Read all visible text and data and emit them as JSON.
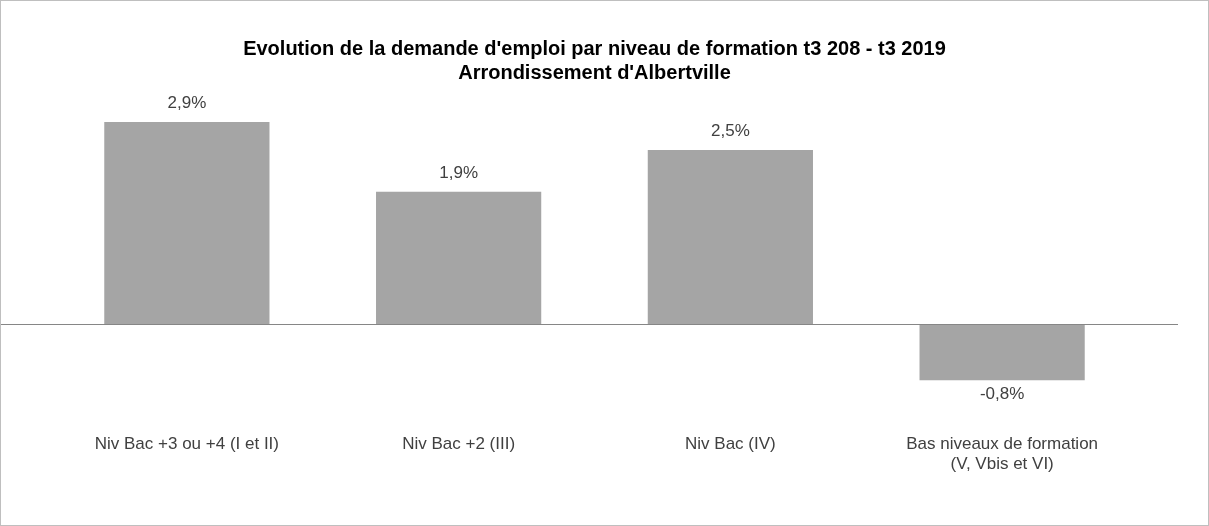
{
  "chart_data": {
    "type": "bar",
    "title": "Evolution de la demande d'emploi par niveau de formation t3 208 - t3 2019\nArrondissement d'Albertville",
    "categories": [
      "Niv Bac +3 ou +4 (I et II)",
      "Niv Bac +2 (III)",
      "Niv Bac (IV)",
      "Bas niveaux de formation (V, Vbis et VI)"
    ],
    "values": [
      2.9,
      1.9,
      2.5,
      -0.8
    ],
    "value_labels": [
      "2,9%",
      "1,9%",
      "2,5%",
      "-0,8%"
    ],
    "color": "#a5a5a5",
    "grid": false,
    "legend": false
  }
}
